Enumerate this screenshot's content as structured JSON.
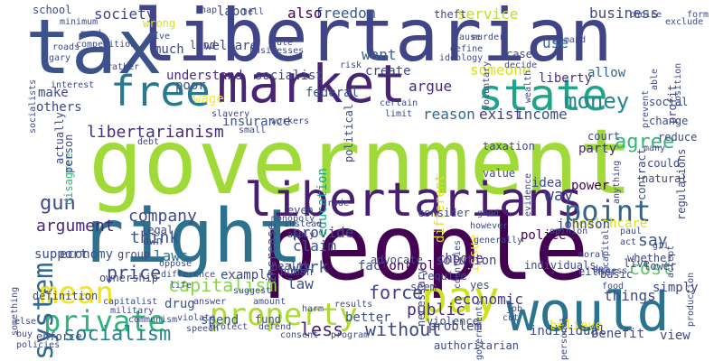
{
  "words": [
    {
      "text": "government",
      "color": "#a0da39"
    },
    {
      "text": "people",
      "color": "#440154"
    },
    {
      "text": "libertarian",
      "color": "#404588"
    },
    {
      "text": "tax",
      "color": "#3b528b"
    },
    {
      "text": "right",
      "color": "#2c728e"
    },
    {
      "text": "market",
      "color": "#482475"
    },
    {
      "text": "would",
      "color": "#2c738e"
    },
    {
      "text": "libertarians",
      "color": "#481f70"
    },
    {
      "text": "state",
      "color": "#20a386"
    },
    {
      "text": "free",
      "color": "#2a788e"
    },
    {
      "text": "pay",
      "color": "#cde11d"
    },
    {
      "text": "property",
      "color": "#addc30"
    },
    {
      "text": "private",
      "color": "#2fb47c"
    },
    {
      "text": "system",
      "color": "#31688e"
    },
    {
      "text": "mean",
      "color": "#f1e51d"
    },
    {
      "text": "point",
      "color": "#33638d"
    },
    {
      "text": "money",
      "color": "#25858e"
    },
    {
      "text": "gun",
      "color": "#3e4989"
    },
    {
      "text": "capitalism",
      "color": "#89d548"
    },
    {
      "text": "socialism",
      "color": "#26828e"
    },
    {
      "text": "libertarianism",
      "color": "#472d7b"
    },
    {
      "text": "argument",
      "color": "#482878"
    },
    {
      "text": "company",
      "color": "#3e4989"
    },
    {
      "text": "think",
      "color": "#3b528b"
    },
    {
      "text": "agree",
      "color": "#35b779"
    },
    {
      "text": "cost",
      "color": "#5ec962"
    },
    {
      "text": "say",
      "color": "#38598c"
    },
    {
      "text": "price",
      "color": "#3e4989"
    },
    {
      "text": "less",
      "color": "#482475"
    },
    {
      "text": "without",
      "color": "#3e4989"
    },
    {
      "text": "force",
      "color": "#433e85"
    },
    {
      "text": "public",
      "color": "#472d7b"
    },
    {
      "text": "economic",
      "color": "#443983"
    },
    {
      "text": "business",
      "color": "#3e4989"
    },
    {
      "text": "society",
      "color": "#404588"
    },
    {
      "text": "freedom",
      "color": "#365c8d"
    },
    {
      "text": "service",
      "color": "#bddf26"
    },
    {
      "text": "also",
      "color": "#440154"
    },
    {
      "text": "want",
      "color": "#33638d"
    },
    {
      "text": "use",
      "color": "#31688e"
    },
    {
      "text": "argue",
      "color": "#472d7b"
    },
    {
      "text": "party",
      "color": "#472c7a"
    },
    {
      "text": "exist",
      "color": "#433e85"
    },
    {
      "text": "income",
      "color": "#3b528b"
    },
    {
      "text": "reason",
      "color": "#31688e"
    },
    {
      "text": "someone",
      "color": "#d8e219"
    },
    {
      "text": "liberty",
      "color": "#46327e"
    },
    {
      "text": "allow",
      "color": "#34618d"
    },
    {
      "text": "way",
      "color": "#3e4989"
    },
    {
      "text": "work",
      "color": "#3b528b"
    },
    {
      "text": "law",
      "color": "#3b528b"
    },
    {
      "text": "laws",
      "color": "#2c728e"
    },
    {
      "text": "claim",
      "color": "#3b528b"
    },
    {
      "text": "things",
      "color": "#3e4989"
    },
    {
      "text": "provide",
      "color": "#3e4989"
    },
    {
      "text": "fact",
      "color": "#3e4989"
    },
    {
      "text": "control",
      "color": "#440154"
    },
    {
      "text": "choose",
      "color": "#472d7b"
    },
    {
      "text": "healthcare",
      "color": "#d8e219"
    },
    {
      "text": "education",
      "color": "#20a386"
    },
    {
      "text": "police",
      "color": "#440154"
    },
    {
      "text": "power",
      "color": "#440154"
    },
    {
      "text": "issue",
      "color": "#fde725"
    },
    {
      "text": "idea",
      "color": "#3e4989"
    },
    {
      "text": "johnson",
      "color": "#3e4989"
    },
    {
      "text": "believe",
      "color": "#f1e51d"
    },
    {
      "text": "problem",
      "color": "#404588"
    },
    {
      "text": "solution",
      "color": "#433e85"
    },
    {
      "text": "spend",
      "color": "#3b528b"
    },
    {
      "text": "fund",
      "color": "#404588"
    },
    {
      "text": "drug",
      "color": "#3b528b"
    },
    {
      "text": "insurance",
      "color": "#3b528b"
    },
    {
      "text": "understand",
      "color": "#472d7b"
    },
    {
      "text": "socialist",
      "color": "#3e4989"
    },
    {
      "text": "make",
      "color": "#3e4989"
    },
    {
      "text": "others",
      "color": "#404588"
    },
    {
      "text": "poor",
      "color": "#3b528b"
    },
    {
      "text": "wage",
      "color": "#fde725"
    },
    {
      "text": "create",
      "color": "#3e4989"
    },
    {
      "text": "federal",
      "color": "#3b528b"
    },
    {
      "text": "increase",
      "color": "#3b528b"
    },
    {
      "text": "example",
      "color": "#3e4989"
    },
    {
      "text": "support",
      "color": "#3e4989"
    },
    {
      "text": "economy",
      "color": "#3b528b"
    },
    {
      "text": "simply",
      "color": "#3e4989"
    },
    {
      "text": "benefit",
      "color": "#3e4989"
    },
    {
      "text": "view",
      "color": "#3e4989"
    },
    {
      "text": "individual",
      "color": "#3e4989"
    },
    {
      "text": "better",
      "color": "#3b528b"
    },
    {
      "text": "welfare",
      "color": "#3e4989"
    },
    {
      "text": "labor",
      "color": "#3e4989"
    },
    {
      "text": "land",
      "color": "#404588"
    },
    {
      "text": "much",
      "color": "#3e4989"
    },
    {
      "text": "school",
      "color": "#3e4989"
    },
    {
      "text": "wrong",
      "color": "#d8e219"
    },
    {
      "text": "theft",
      "color": "#3e4989"
    },
    {
      "text": "social",
      "color": "#3e4989"
    },
    {
      "text": "contract",
      "color": "#3e4989"
    },
    {
      "text": "taxation",
      "color": "#3e4989"
    },
    {
      "text": "value",
      "color": "#3e4989"
    },
    {
      "text": "different",
      "color": "#d8e219"
    },
    {
      "text": "require",
      "color": "#3e4989"
    },
    {
      "text": "seem",
      "color": "#3e4989"
    },
    {
      "text": "disagree",
      "color": "#35b779"
    },
    {
      "text": "person",
      "color": "#3e4989"
    },
    {
      "text": "actually",
      "color": "#3e4989"
    },
    {
      "text": "political",
      "color": "#3e4989"
    },
    {
      "text": "case",
      "color": "#3e4989"
    },
    {
      "text": "profit",
      "color": "#3e4989"
    },
    {
      "text": "regulations",
      "color": "#3e4989"
    },
    {
      "text": "authoritarian",
      "color": "#3e4989"
    },
    {
      "text": "enforce",
      "color": "#3e4989"
    },
    {
      "text": "definition",
      "color": "#3e4989"
    },
    {
      "text": "health",
      "color": "#3e4989"
    },
    {
      "text": "individuals",
      "color": "#3e4989"
    },
    {
      "text": "advocate",
      "color": "#3e4989"
    },
    {
      "text": "necessary",
      "color": "#3e4989"
    },
    {
      "text": "consider",
      "color": "#3e4989"
    },
    {
      "text": "human",
      "color": "#3e4989"
    },
    {
      "text": "live",
      "color": "#3e4989"
    },
    {
      "text": "court",
      "color": "#3e4989"
    },
    {
      "text": "change",
      "color": "#3e4989"
    },
    {
      "text": "reduce",
      "color": "#3e4989"
    },
    {
      "text": "could",
      "color": "#3e4989"
    },
    {
      "text": "natural",
      "color": "#3e4989"
    },
    {
      "text": "many",
      "color": "#3e4989"
    },
    {
      "text": "food",
      "color": "#3e4989"
    },
    {
      "text": "lower",
      "color": "#3e4989"
    },
    {
      "text": "basic",
      "color": "#3e4989"
    },
    {
      "text": "whether",
      "color": "#3e4989"
    },
    {
      "text": "either",
      "color": "#3e4989"
    },
    {
      "text": "yes",
      "color": "#3e4989"
    },
    {
      "text": "violence",
      "color": "#3e4989"
    },
    {
      "text": "consent",
      "color": "#3e4989"
    },
    {
      "text": "program",
      "color": "#3e4989"
    },
    {
      "text": "ownership",
      "color": "#3e4989"
    },
    {
      "text": "group",
      "color": "#3e4989"
    },
    {
      "text": "legal",
      "color": "#3e4989"
    },
    {
      "text": "own",
      "color": "#3e4989"
    },
    {
      "text": "even",
      "color": "#3e4989"
    },
    {
      "text": "monopoly",
      "color": "#3e4989"
    },
    {
      "text": "trade",
      "color": "#3e4989"
    },
    {
      "text": "certain",
      "color": "#3e4989"
    },
    {
      "text": "limit",
      "color": "#3e4989"
    },
    {
      "text": "ideology",
      "color": "#3e4989"
    },
    {
      "text": "rather",
      "color": "#3e4989"
    },
    {
      "text": "interest",
      "color": "#3e4989"
    },
    {
      "text": "gary",
      "color": "#3e4989"
    },
    {
      "text": "roads",
      "color": "#3e4989"
    },
    {
      "text": "rand",
      "color": "#3e4989"
    },
    {
      "text": "minimum",
      "color": "#3e4989"
    },
    {
      "text": "competition",
      "color": "#3e4989"
    },
    {
      "text": "nap",
      "color": "#3e4989"
    },
    {
      "text": "rule",
      "color": "#3e4989"
    },
    {
      "text": "risk",
      "color": "#3e4989"
    },
    {
      "text": "murder",
      "color": "#3e4989"
    },
    {
      "text": "cause",
      "color": "#3e4989"
    },
    {
      "text": "define",
      "color": "#3e4989"
    },
    {
      "text": "demand",
      "color": "#3e4989"
    },
    {
      "text": "decide",
      "color": "#3e4989"
    },
    {
      "text": "choice",
      "color": "#3e4989"
    },
    {
      "text": "exclude",
      "color": "#3e4989"
    },
    {
      "text": "form",
      "color": "#3e4989"
    },
    {
      "text": "workers",
      "color": "#3e4989"
    },
    {
      "text": "small",
      "color": "#3e4989"
    },
    {
      "text": "slavery",
      "color": "#3e4989"
    },
    {
      "text": "paul",
      "color": "#3e4989"
    },
    {
      "text": "act",
      "color": "#3e4989"
    },
    {
      "text": "military",
      "color": "#3e4989"
    },
    {
      "text": "communism",
      "color": "#3e4989"
    },
    {
      "text": "defend",
      "color": "#3e4989"
    },
    {
      "text": "protect",
      "color": "#3e4989"
    },
    {
      "text": "violate",
      "color": "#3e4989"
    },
    {
      "text": "capitalist",
      "color": "#3e4989"
    },
    {
      "text": "else",
      "color": "#3e4989"
    },
    {
      "text": "buy",
      "color": "#3e4989"
    },
    {
      "text": "policies",
      "color": "#3e4989"
    },
    {
      "text": "speech",
      "color": "#3e4989"
    },
    {
      "text": "answer",
      "color": "#3e4989"
    },
    {
      "text": "amount",
      "color": "#3e4989"
    },
    {
      "text": "suggest",
      "color": "#3e4989"
    },
    {
      "text": "harm",
      "color": "#3e4989"
    },
    {
      "text": "results",
      "color": "#3e4989"
    },
    {
      "text": "job",
      "color": "#3e4989"
    },
    {
      "text": "cut",
      "color": "#3e4989"
    },
    {
      "text": "governments",
      "color": "#3e4989"
    },
    {
      "text": "moral",
      "color": "#3e4989"
    },
    {
      "text": "access",
      "color": "#3e4989"
    },
    {
      "text": "instead",
      "color": "#3e4989"
    },
    {
      "text": "opinion",
      "color": "#3e4989"
    },
    {
      "text": "apply",
      "color": "#3e4989"
    },
    {
      "text": "oppose",
      "color": "#3e4989"
    },
    {
      "text": "something",
      "color": "#3e4989"
    },
    {
      "text": "personal",
      "color": "#3e4989"
    },
    {
      "text": "production",
      "color": "#3e4989"
    },
    {
      "text": "generally",
      "color": "#3e4989"
    },
    {
      "text": "gti",
      "color": "#3e4989"
    },
    {
      "text": "give",
      "color": "#3e4989"
    },
    {
      "text": "businesses",
      "color": "#3e4989"
    },
    {
      "text": "socialists",
      "color": "#3e4989"
    },
    {
      "text": "tell",
      "color": "#3e4989"
    },
    {
      "text": "prevent",
      "color": "#3e4989"
    },
    {
      "text": "voluntary",
      "color": "#3e4989"
    },
    {
      "text": "wealth",
      "color": "#3e4989"
    },
    {
      "text": "able",
      "color": "#3e4989"
    },
    {
      "text": "position",
      "color": "#3e4989"
    },
    {
      "text": "evidence",
      "color": "#3e4989"
    },
    {
      "text": "capital",
      "color": "#3e4989"
    },
    {
      "text": "anything",
      "color": "#3e4989"
    },
    {
      "text": "difference",
      "color": "#3e4989"
    },
    {
      "text": "life",
      "color": "#3e4989"
    },
    {
      "text": "countries",
      "color": "#3e4989"
    },
    {
      "text": "accept",
      "color": "#3e4989"
    },
    {
      "text": "however",
      "color": "#3e4989"
    },
    {
      "text": "good",
      "color": "#3e4989"
    },
    {
      "text": "dem",
      "color": "#3e4989"
    },
    {
      "text": "debt",
      "color": "#3e4989"
    }
  ]
}
